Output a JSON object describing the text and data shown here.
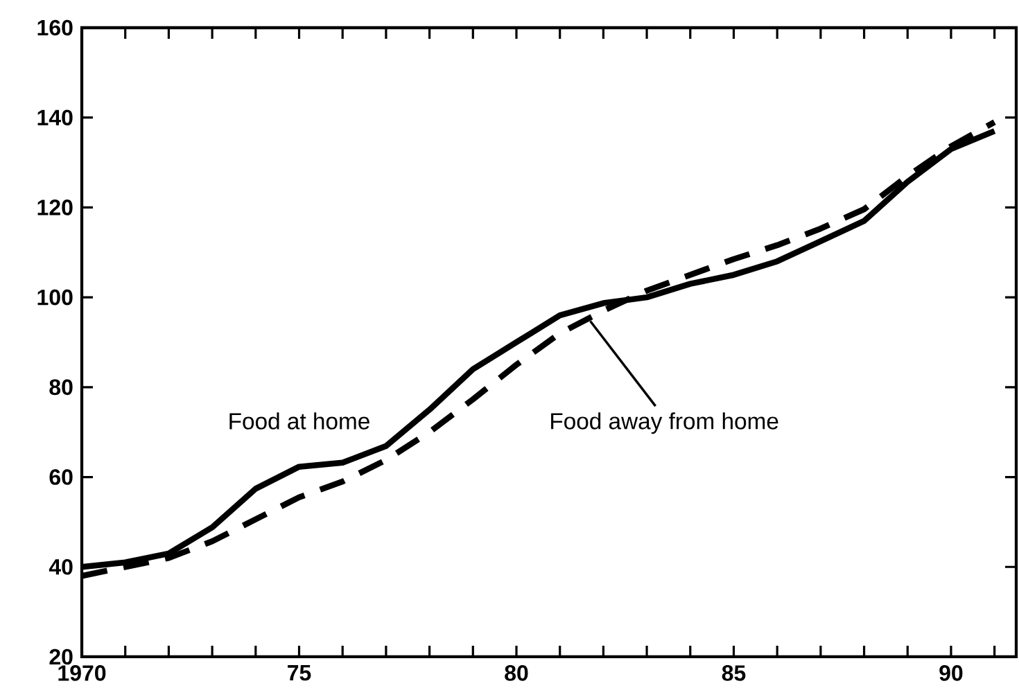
{
  "chart_data": {
    "type": "line",
    "x": [
      1970,
      1971,
      1972,
      1973,
      1974,
      1975,
      1976,
      1977,
      1978,
      1979,
      1980,
      1981,
      1982,
      1983,
      1984,
      1985,
      1986,
      1987,
      1988,
      1989,
      1990,
      1991
    ],
    "series": [
      {
        "name": "Food at home",
        "color": "#000000",
        "line_style": "solid",
        "values": [
          40,
          41,
          43,
          48.8,
          57.4,
          62.3,
          63.2,
          66.9,
          75,
          84,
          90,
          96,
          98.7,
          100,
          103,
          105,
          108,
          112.5,
          117,
          125.7,
          133,
          137
        ]
      },
      {
        "name": "Food away from home",
        "color": "#000000",
        "line_style": "dashed",
        "values": [
          38,
          40,
          42,
          45.7,
          50.6,
          55.5,
          59,
          63.8,
          70,
          77.3,
          85,
          92,
          97,
          101.5,
          105,
          108.5,
          111.6,
          115.3,
          119.6,
          127,
          133.6,
          139
        ]
      }
    ],
    "xlim": [
      1970,
      1991.5
    ],
    "xticks": [
      {
        "value": 1970,
        "label": "1970"
      },
      {
        "value": 1971,
        "label": null
      },
      {
        "value": 1972,
        "label": null
      },
      {
        "value": 1973,
        "label": null
      },
      {
        "value": 1974,
        "label": null
      },
      {
        "value": 1975,
        "label": "75"
      },
      {
        "value": 1976,
        "label": null
      },
      {
        "value": 1977,
        "label": null
      },
      {
        "value": 1978,
        "label": null
      },
      {
        "value": 1979,
        "label": null
      },
      {
        "value": 1980,
        "label": "80"
      },
      {
        "value": 1981,
        "label": null
      },
      {
        "value": 1982,
        "label": null
      },
      {
        "value": 1983,
        "label": null
      },
      {
        "value": 1984,
        "label": null
      },
      {
        "value": 1985,
        "label": "85"
      },
      {
        "value": 1986,
        "label": null
      },
      {
        "value": 1987,
        "label": null
      },
      {
        "value": 1988,
        "label": null
      },
      {
        "value": 1989,
        "label": null
      },
      {
        "value": 1990,
        "label": "90"
      },
      {
        "value": 1991,
        "label": null
      }
    ],
    "ylim": [
      20,
      160
    ],
    "yticks": [
      20,
      40,
      60,
      80,
      100,
      120,
      140,
      160
    ],
    "grid": false,
    "legend": false,
    "marker": "none"
  }
}
